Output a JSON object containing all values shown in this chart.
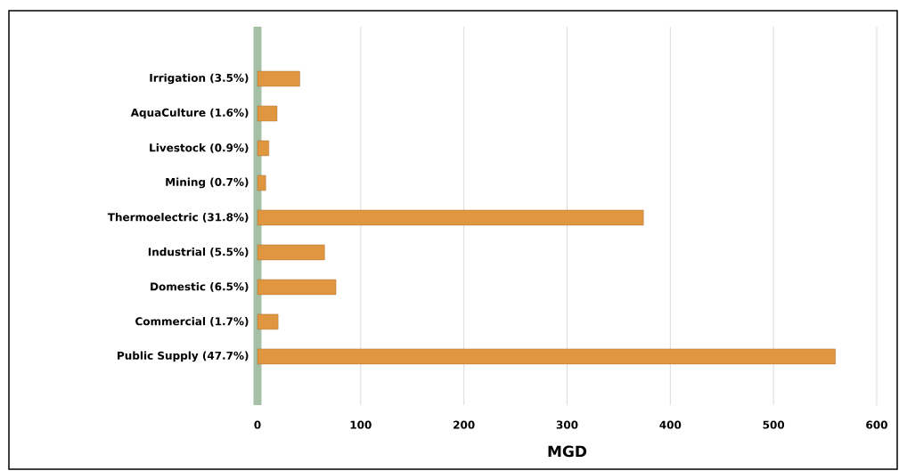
{
  "chart_data": {
    "type": "bar",
    "orientation": "horizontal",
    "xlabel": "MGD",
    "categories": [
      "Irrigation (3.5%)",
      "AquaCulture (1.6%)",
      "Livestock (0.9%)",
      "Mining (0.7%)",
      "Thermoelectric (31.8%)",
      "Industrial (5.5%)",
      "Domestic (6.5%)",
      "Commercial (1.7%)",
      "Public Supply (47.7%)"
    ],
    "values": [
      41,
      19,
      11,
      8,
      374,
      65,
      76,
      20,
      560
    ],
    "color": "#e0953f",
    "xlim": [
      0,
      600
    ],
    "xticks": [
      0,
      100,
      200,
      300,
      400,
      500,
      600
    ],
    "grid": "x"
  }
}
